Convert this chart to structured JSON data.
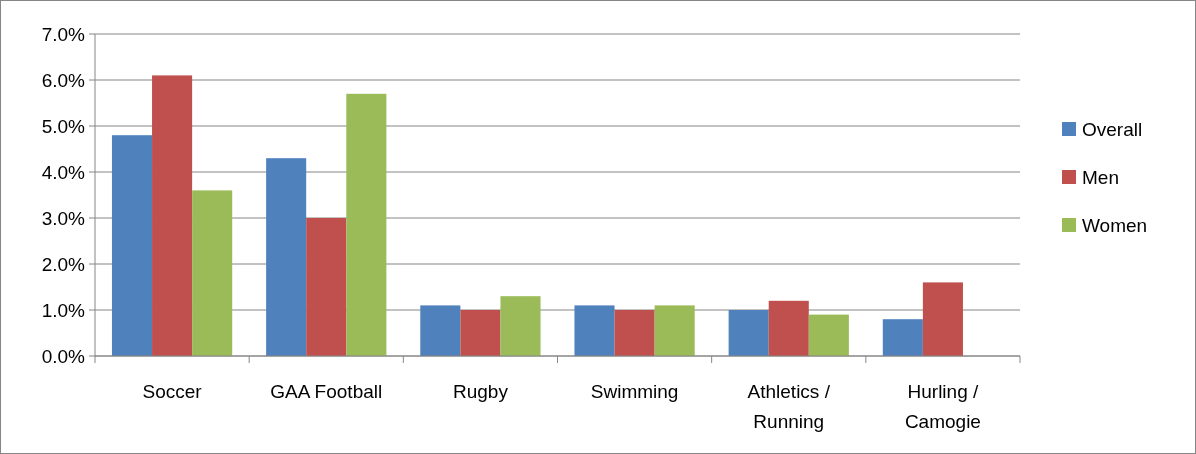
{
  "chart_data": {
    "type": "bar",
    "categories": [
      "Soccer",
      "GAA Football",
      "Rugby",
      "Swimming",
      "Athletics / Running",
      "Hurling / Camogie"
    ],
    "series": [
      {
        "name": "Overall",
        "color": "#4f81bd",
        "values": [
          4.8,
          4.3,
          1.1,
          1.1,
          1.0,
          0.8
        ]
      },
      {
        "name": "Men",
        "color": "#c0504d",
        "values": [
          6.1,
          3.0,
          1.0,
          1.0,
          1.2,
          1.6
        ]
      },
      {
        "name": "Women",
        "color": "#9bbb59",
        "values": [
          3.6,
          5.7,
          1.3,
          1.1,
          0.9,
          null
        ]
      }
    ],
    "ylim": [
      0,
      7
    ],
    "yticks": [
      {
        "value": 0,
        "label": "0.0%"
      },
      {
        "value": 1,
        "label": "1.0%"
      },
      {
        "value": 2,
        "label": "2.0%"
      },
      {
        "value": 3,
        "label": "3.0%"
      },
      {
        "value": 4,
        "label": "4.0%"
      },
      {
        "value": 5,
        "label": "5.0%"
      },
      {
        "value": 6,
        "label": "6.0%"
      },
      {
        "value": 7,
        "label": "7.0%"
      }
    ],
    "grid": "y",
    "legend": "right"
  }
}
